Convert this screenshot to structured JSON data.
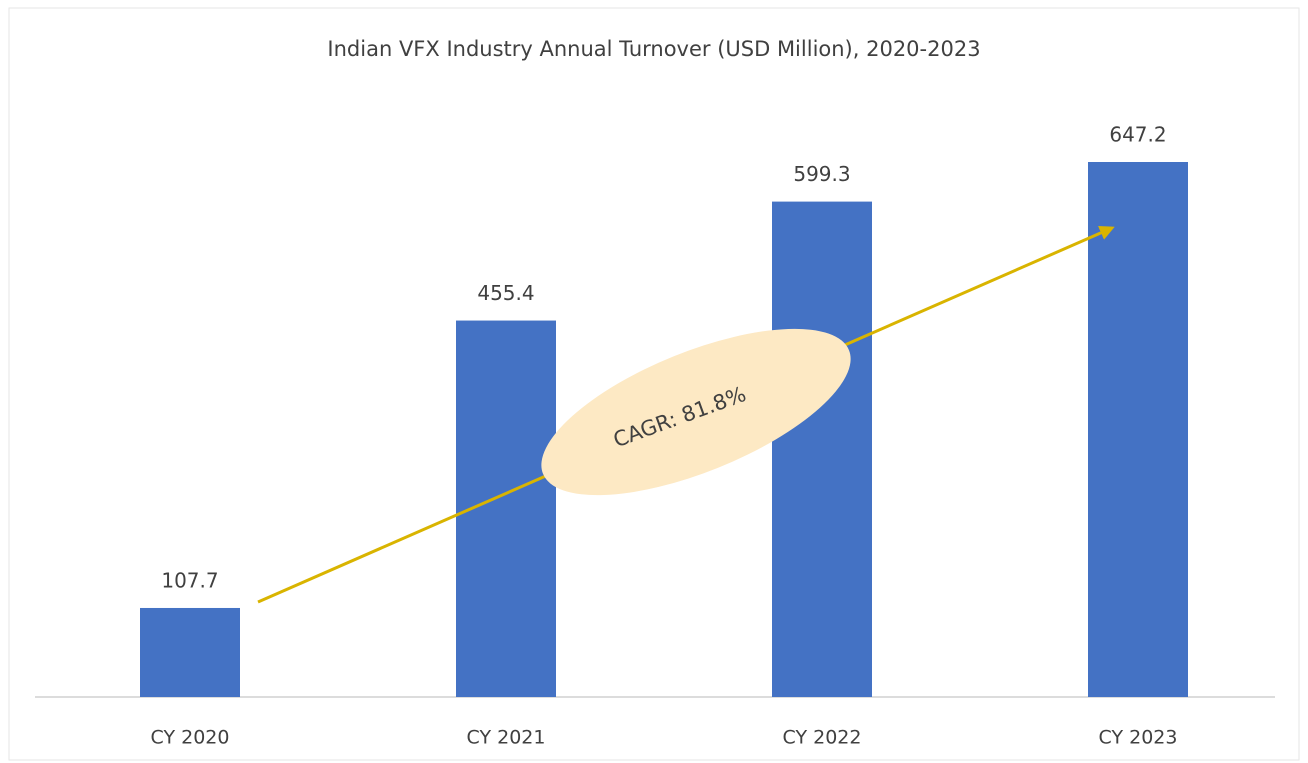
{
  "chart_data": {
    "type": "bar",
    "title": "Indian VFX Industry Annual Turnover (USD Million), 2020-2023",
    "categories": [
      "CY 2020",
      "CY 2021",
      "CY 2022",
      "CY 2023"
    ],
    "values": [
      107.7,
      455.4,
      599.3,
      647.2
    ],
    "color": "#4472c4",
    "annotation": "CAGR: 81.8%"
  }
}
